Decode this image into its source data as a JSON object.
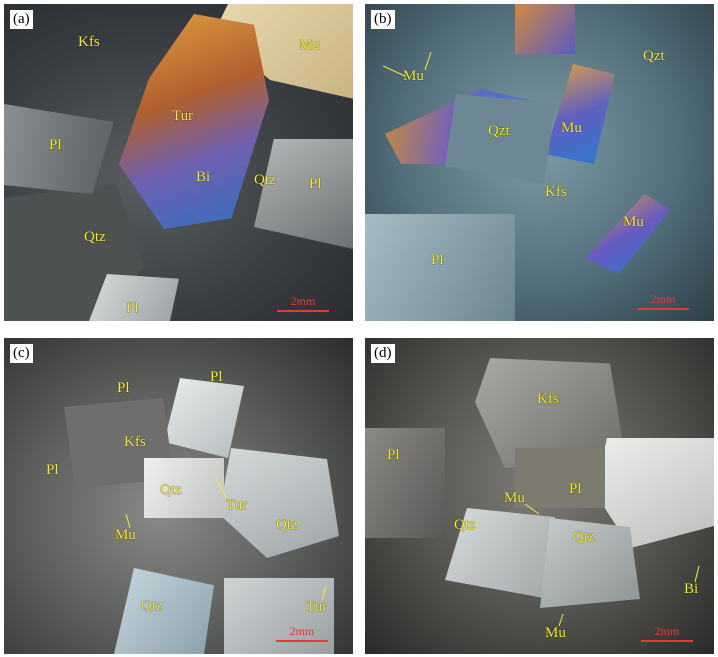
{
  "colors": {
    "label": "#f7ec2e",
    "scalebar": "#e23a36"
  },
  "panels": {
    "a": {
      "tag": "(a)",
      "labels": {
        "kfs": "Kfs",
        "mu": "Mu",
        "tur": "Tur",
        "pl1": "Pl",
        "bi": "Bi",
        "qtz1": "Qtz",
        "pl2": "Pl",
        "qtz2": "Qtz",
        "pl3": "Pl"
      },
      "scale": "2mm"
    },
    "b": {
      "tag": "(b)",
      "labels": {
        "mu1": "Mu",
        "qzt1": "Qzt",
        "qzt2": "Qzt",
        "mu2": "Mu",
        "kfs": "Kfs",
        "mu3": "Mu",
        "pl": "Pl"
      },
      "scale": "2mm"
    },
    "c": {
      "tag": "(c)",
      "labels": {
        "pl1": "Pl",
        "pl2": "Pl",
        "kfs": "Kfs",
        "pl3": "Pl",
        "qtz1": "Qtz",
        "tur1": "Tur",
        "mu": "Mu",
        "qtz2": "Qtz",
        "qtz3": "Qtz",
        "tur2": "Tur"
      },
      "scale": "2mm"
    },
    "d": {
      "tag": "(d)",
      "labels": {
        "kfs": "Kfs",
        "pl1": "Pl",
        "mu1": "Mu",
        "pl2": "Pl",
        "qtz1": "Qtz",
        "qtz2": "Qtz",
        "bi": "Bi",
        "mu2": "Mu"
      },
      "scale": "2mm"
    }
  }
}
